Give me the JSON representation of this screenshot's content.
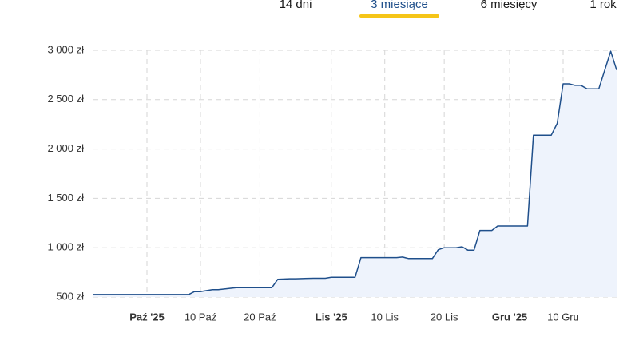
{
  "tabs": [
    "14 dni",
    "3 miesiące",
    "6 miesięcy",
    "1 rok"
  ],
  "selected_tab": 1,
  "chart_data": {
    "type": "area",
    "color": "#1f4f8b",
    "fill": "#eef3fc",
    "grid": true,
    "x": [
      "2025-09-22",
      "2025-10-08",
      "2025-10-09",
      "2025-10-10",
      "2025-10-12",
      "2025-10-13",
      "2025-10-16",
      "2025-10-17",
      "2025-10-22",
      "2025-10-23",
      "2025-10-25",
      "2025-10-26",
      "2025-10-29",
      "2025-10-31",
      "2025-11-01",
      "2025-11-04",
      "2025-11-05",
      "2025-11-06",
      "2025-11-12",
      "2025-11-13",
      "2025-11-14",
      "2025-11-18",
      "2025-11-19",
      "2025-11-20",
      "2025-11-22",
      "2025-11-23",
      "2025-11-24",
      "2025-11-25",
      "2025-11-26",
      "2025-11-28",
      "2025-11-29",
      "2025-12-04",
      "2025-12-05",
      "2025-12-08",
      "2025-12-09",
      "2025-12-10",
      "2025-12-11",
      "2025-12-12",
      "2025-12-13",
      "2025-12-14",
      "2025-12-16",
      "2025-12-18",
      "2025-12-19"
    ],
    "values": [
      525,
      525,
      555,
      555,
      575,
      575,
      595,
      595,
      595,
      680,
      685,
      685,
      690,
      690,
      700,
      700,
      700,
      900,
      900,
      905,
      890,
      890,
      980,
      1000,
      1000,
      1010,
      975,
      975,
      1175,
      1175,
      1220,
      1220,
      2140,
      2140,
      2260,
      2660,
      2660,
      2645,
      2645,
      2610,
      2610,
      2990,
      2800
    ],
    "xlim": [
      "2025-09-22",
      "2025-12-19"
    ],
    "xticks": [
      {
        "value": "2025-10-01",
        "label": "Paź '25"
      },
      {
        "value": "2025-10-10",
        "label": "10 Paź"
      },
      {
        "value": "2025-10-20",
        "label": "20 Paź"
      },
      {
        "value": "2025-11-01",
        "label": "Lis '25"
      },
      {
        "value": "2025-11-10",
        "label": "10 Lis"
      },
      {
        "value": "2025-11-20",
        "label": "20 Lis"
      },
      {
        "value": "2025-12-01",
        "label": "Gru '25"
      },
      {
        "value": "2025-12-10",
        "label": "10 Gru"
      }
    ],
    "ylim": [
      500,
      3000
    ],
    "yticks": [
      {
        "value": 500,
        "label": "500 zł"
      },
      {
        "value": 1000,
        "label": "1 000 zł"
      },
      {
        "value": 1500,
        "label": "1 500 zł"
      },
      {
        "value": 2000,
        "label": "2 000 zł"
      },
      {
        "value": 2500,
        "label": "2 500 zł"
      },
      {
        "value": 3000,
        "label": "3 000 zł"
      }
    ]
  }
}
